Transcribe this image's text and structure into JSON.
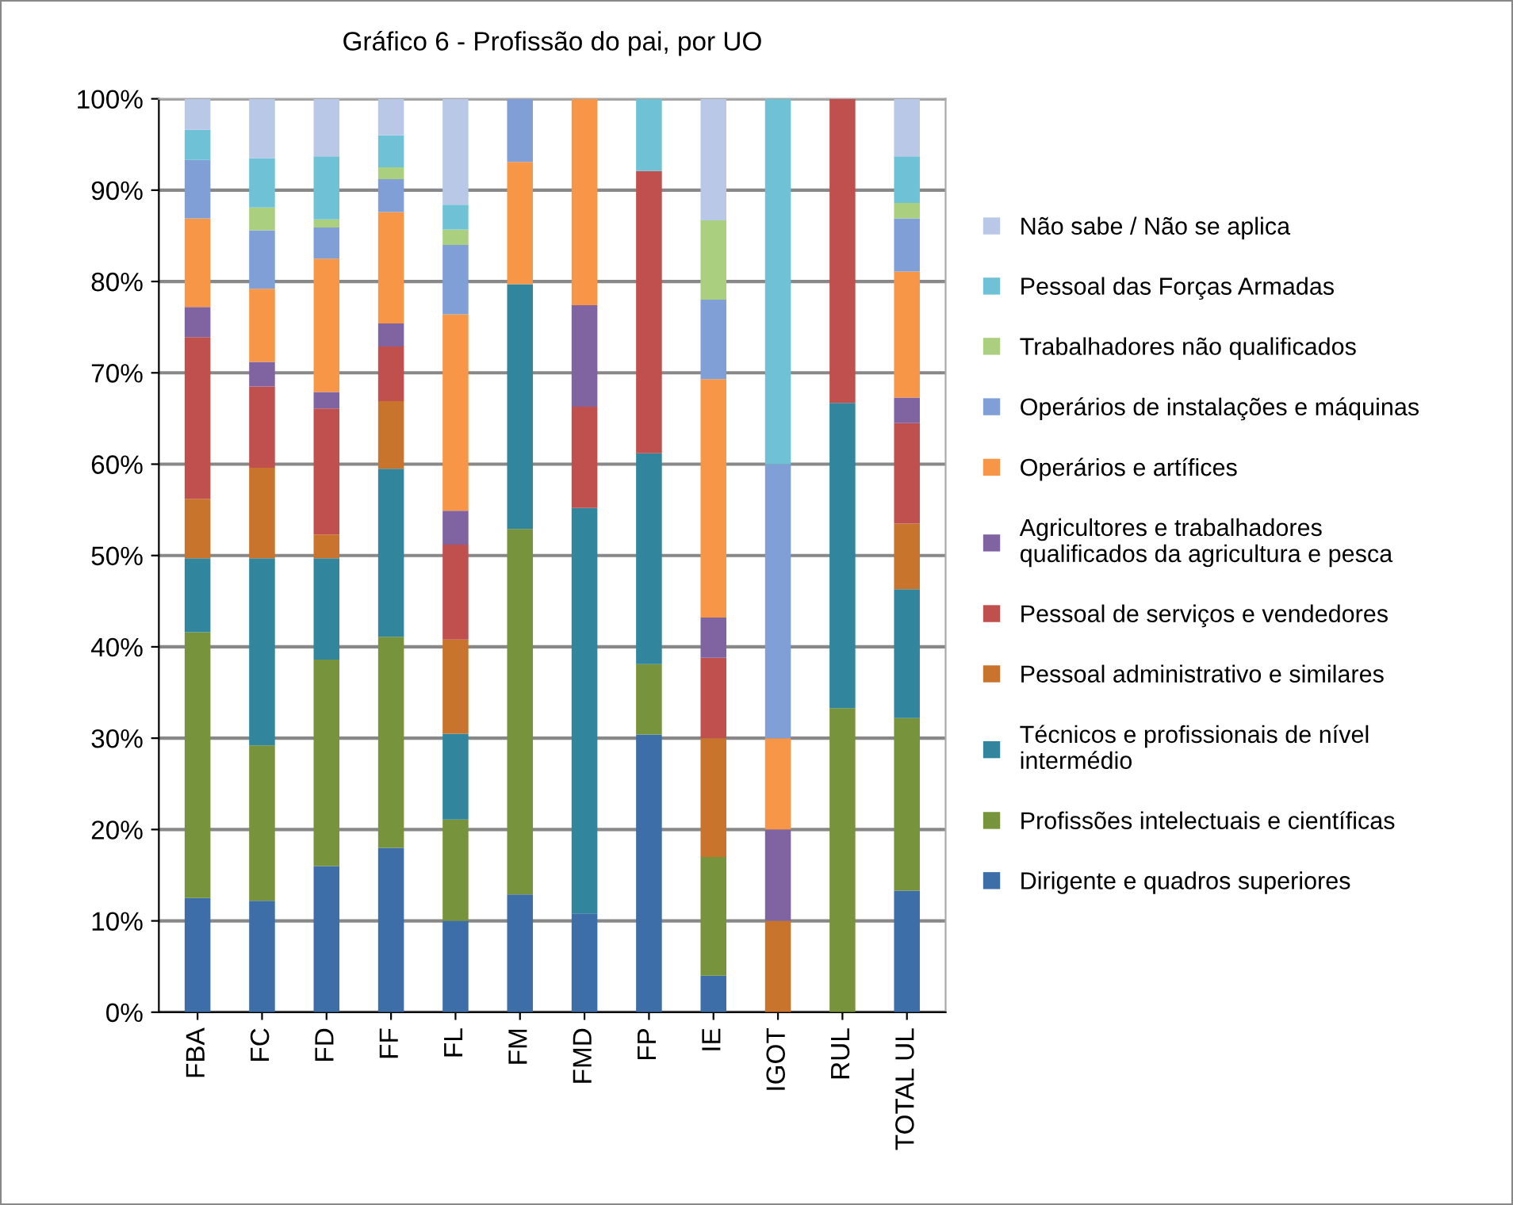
{
  "chart_data": {
    "type": "bar",
    "stacked": true,
    "title": "Gráfico 6 - Profissão do pai, por UO",
    "categories": [
      "FBA",
      "FC",
      "FD",
      "FF",
      "FL",
      "FM",
      "FMD",
      "FP",
      "IE",
      "IGOT",
      "RUL",
      "TOTAL UL"
    ],
    "ylim": [
      0,
      100
    ],
    "yticks": [
      {
        "value": 0,
        "label": "0%"
      },
      {
        "value": 10,
        "label": "10%"
      },
      {
        "value": 20,
        "label": "20%"
      },
      {
        "value": 30,
        "label": "30%"
      },
      {
        "value": 40,
        "label": "40%"
      },
      {
        "value": 50,
        "label": "50%"
      },
      {
        "value": 60,
        "label": "60%"
      },
      {
        "value": 70,
        "label": "70%"
      },
      {
        "value": 80,
        "label": "80%"
      },
      {
        "value": 90,
        "label": "90%"
      },
      {
        "value": 100,
        "label": "100%"
      }
    ],
    "grid": "y",
    "legend": "right",
    "series": [
      {
        "name": "Dirigente e quadros superiores",
        "color": "#3d6ea8",
        "values": [
          12.5,
          12.2,
          16.0,
          18.0,
          10.0,
          12.9,
          10.8,
          30.4,
          4.0,
          0,
          0,
          13.3
        ]
      },
      {
        "name": "Profissões intelectuais e científicas",
        "color": "#77933c",
        "values": [
          29.1,
          17.0,
          22.6,
          23.1,
          11.1,
          40.0,
          0,
          7.7,
          13.0,
          0,
          33.3,
          18.9
        ]
      },
      {
        "name": "Técnicos e profissionais de nível\nintermédio",
        "color": "#31859c",
        "values": [
          8.1,
          20.5,
          11.1,
          18.4,
          9.4,
          26.8,
          44.4,
          23.1,
          0,
          0,
          33.4,
          14.1
        ]
      },
      {
        "name": "Pessoal administrativo e similares",
        "color": "#c8742c",
        "values": [
          6.5,
          9.9,
          2.6,
          7.4,
          10.3,
          0,
          0,
          0,
          13.0,
          10,
          0,
          7.2
        ]
      },
      {
        "name": "Pessoal de serviços e vendedores",
        "color": "#c0504d",
        "values": [
          17.7,
          8.9,
          13.8,
          6.0,
          10.4,
          0,
          11.1,
          30.9,
          8.8,
          0,
          33.3,
          11.0
        ]
      },
      {
        "name": "Agricultores e trabalhadores\nqualificados da agricultura e pesca",
        "color": "#8064a2",
        "values": [
          3.3,
          2.7,
          1.8,
          2.5,
          3.7,
          0,
          11.1,
          0,
          4.4,
          10,
          0,
          2.8
        ]
      },
      {
        "name": "Operários e artífices",
        "color": "#f79646",
        "values": [
          9.7,
          8.0,
          14.6,
          12.2,
          21.5,
          13.4,
          22.6,
          0,
          26.1,
          10,
          0,
          13.8
        ]
      },
      {
        "name": "Operários de instalações e máquinas",
        "color": "#7f9fd6",
        "values": [
          6.4,
          6.4,
          3.4,
          3.6,
          7.6,
          6.9,
          0,
          0,
          8.7,
          30,
          0,
          5.8
        ]
      },
      {
        "name": "Trabalhadores não qualificados",
        "color": "#a9cf7f",
        "values": [
          0,
          2.5,
          0.9,
          1.3,
          1.7,
          0,
          0,
          0,
          8.7,
          0,
          0,
          1.7
        ]
      },
      {
        "name": "Pessoal das Forças Armadas",
        "color": "#6fc2d6",
        "values": [
          3.3,
          5.4,
          6.9,
          3.5,
          2.7,
          0,
          0,
          7.9,
          0,
          40,
          0,
          5.1
        ]
      },
      {
        "name": "Não sabe / Não se aplica",
        "color": "#b9c8e6",
        "values": [
          3.4,
          6.5,
          6.3,
          4.0,
          11.6,
          0,
          0,
          0,
          13.3,
          0,
          0,
          6.3
        ]
      }
    ]
  }
}
